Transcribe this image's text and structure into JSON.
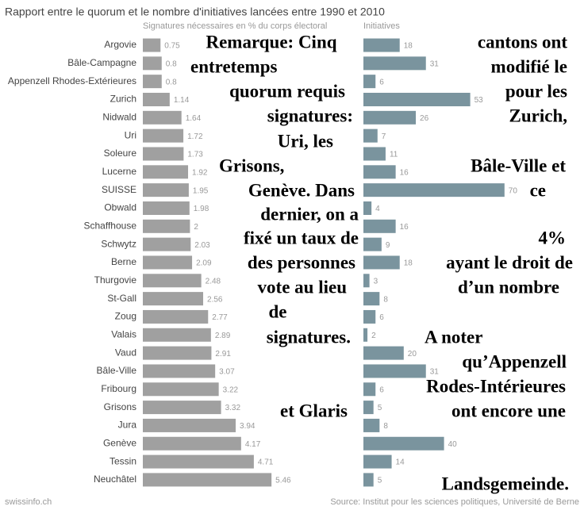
{
  "title": "Rapport entre le quorum et le nombre d'initiatives lancées entre 1990 et 2010",
  "chart_data": [
    {
      "type": "bar",
      "subtitle": "Signatures nécessaires en % du corps électoral",
      "color": "#a0a0a0",
      "categories": [
        "Argovie",
        "Bâle-Campagne",
        "Appenzell Rhodes-Extérieures",
        "Zurich",
        "Nidwald",
        "Uri",
        "Soleure",
        "Lucerne",
        "SUISSE",
        "Obwald",
        "Schaffhouse",
        "Schwytz",
        "Berne",
        "Thurgovie",
        "St-Gall",
        "Zoug",
        "Valais",
        "Vaud",
        "Bâle-Ville",
        "Fribourg",
        "Grisons",
        "Jura",
        "Genève",
        "Tessin",
        "Neuchâtel"
      ],
      "values": [
        0.75,
        0.8,
        0.8,
        1.14,
        1.64,
        1.72,
        1.73,
        1.92,
        1.95,
        1.98,
        2,
        2.03,
        2.09,
        2.48,
        2.56,
        2.77,
        2.89,
        2.91,
        3.07,
        3.22,
        3.32,
        3.94,
        4.17,
        4.71,
        5.46
      ]
    },
    {
      "type": "bar",
      "subtitle": "Initiatives",
      "color": "#7a949e",
      "values": [
        18,
        31,
        6,
        53,
        26,
        7,
        11,
        16,
        70,
        4,
        16,
        9,
        18,
        3,
        8,
        6,
        2,
        20,
        31,
        6,
        5,
        8,
        40,
        14,
        5
      ]
    }
  ],
  "annotation": [
    "Remarque: Cinq",
    "cantons ont",
    "entretemps",
    "modifié le",
    "quorum requis",
    "pour les",
    "signatures:",
    "Zurich,",
    "Uri, les",
    "Grisons,",
    "Bâle-Ville et",
    "Genève. Dans",
    "ce",
    "dernier, on a",
    "fixé un taux de",
    "4%",
    "des personnes",
    "ayant le droit de",
    "vote au lieu",
    "d’un nombre",
    "de",
    "signatures.",
    "A noter",
    "qu’Appenzell",
    "Rodes-Intérieures",
    "et Glaris",
    "ont encore une",
    "Landsgemeinde."
  ],
  "source_left": "swissinfo.ch",
  "source_right": "Source: Institut pour les sciences politiques, Université de Berne"
}
